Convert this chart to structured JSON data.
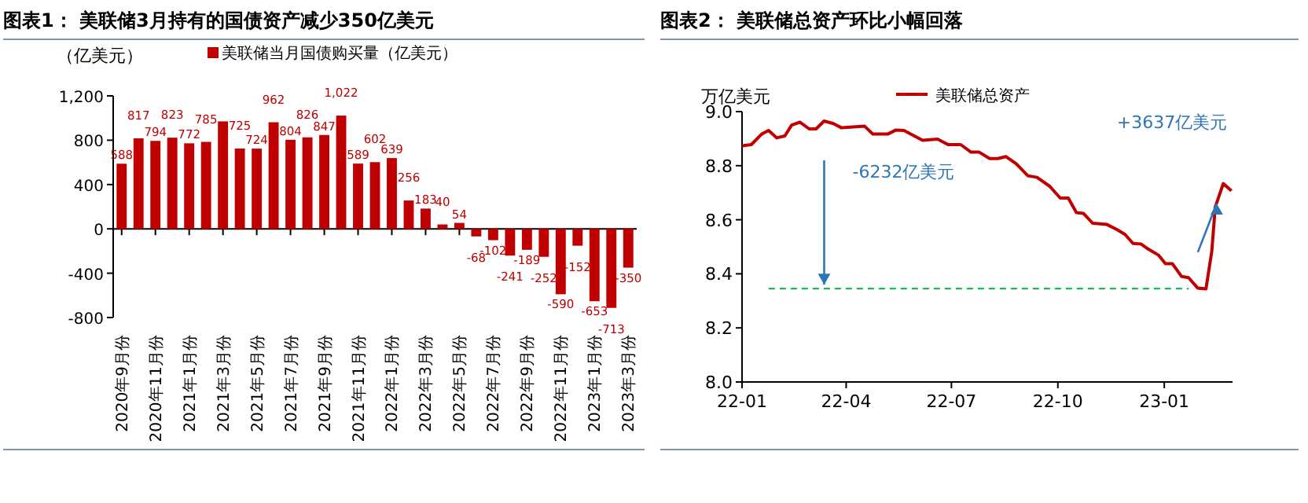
{
  "chart_data": [
    {
      "type": "bar",
      "title": "图表1：  美联储3月持有的国债资产减少350亿美元",
      "ylabel": "（亿美元）",
      "categories": [
        "2020年9月份",
        null,
        "2020年11月份",
        null,
        "2021年1月份",
        null,
        "2021年3月份",
        null,
        "2021年5月份",
        null,
        "2021年7月份",
        null,
        "2021年9月份",
        null,
        "2021年11月份",
        null,
        "2022年1月份",
        null,
        "2022年3月份",
        null,
        "2022年5月份",
        null,
        "2022年7月份",
        null,
        "2022年9月份",
        null,
        "2022年11月份",
        null,
        "2023年1月份",
        null,
        "2023年3月份"
      ],
      "series": [
        {
          "name": "美联储当月国债购买量（亿美元）",
          "color": "#c00000",
          "values": [
            588,
            817,
            794,
            823,
            772,
            785,
            970,
            725,
            724,
            962,
            804,
            826,
            847,
            1022,
            589,
            602,
            639,
            256,
            183,
            40,
            54,
            -68,
            -102,
            -241,
            -189,
            -252,
            -590,
            -152,
            -653,
            -713,
            -350
          ],
          "value_labels": [
            "588",
            "817",
            "794",
            "823",
            "772",
            "785",
            null,
            "725",
            "724",
            "962",
            "804",
            "826",
            "847",
            "1,022",
            "589",
            "602",
            "639",
            "256",
            "183",
            "40",
            "54",
            "-68",
            "-102",
            "-241",
            "-189",
            "-252",
            "-590",
            "-152",
            "-653",
            "-713",
            "-350"
          ]
        }
      ],
      "ylim": [
        -800,
        1200
      ],
      "yticks": [
        -800,
        -400,
        0,
        400,
        800,
        {
          "value": 1200,
          "label": "1,200"
        }
      ],
      "legend": "top"
    },
    {
      "type": "line",
      "title": "图表2：  美联储总资产环比小幅回落",
      "ylabel": "万亿美元",
      "x": [
        "2022-01-01",
        "2022-01-09",
        "2022-01-18",
        "2022-01-24",
        "2022-01-31",
        "2022-02-07",
        "2022-02-13",
        "2022-02-20",
        "2022-02-28",
        "2022-03-06",
        "2022-03-13",
        "2022-03-21",
        "2022-03-28",
        "2022-04-17",
        "2022-04-24",
        "2022-05-07",
        "2022-05-14",
        "2022-05-21",
        "2022-06-06",
        "2022-06-19",
        "2022-06-28",
        "2022-07-09",
        "2022-07-18",
        "2022-07-25",
        "2022-08-03",
        "2022-08-10",
        "2022-08-17",
        "2022-08-26",
        "2022-09-05",
        "2022-09-13",
        "2022-09-24",
        "2022-10-03",
        "2022-10-10",
        "2022-10-17",
        "2022-10-23",
        "2022-10-31",
        "2022-11-12",
        "2022-11-21",
        "2022-11-28",
        "2022-12-05",
        "2022-12-12",
        "2022-12-18",
        "2022-12-27",
        "2023-01-02",
        "2023-01-08",
        "2023-01-16",
        "2023-01-22",
        "2023-01-30",
        "2023-02-06",
        "2023-02-11",
        "2023-02-14",
        "2023-02-21",
        "2023-02-28"
      ],
      "series": [
        {
          "name": "美联储总资产",
          "color": "#c00000",
          "values": [
            8.873,
            8.878,
            8.917,
            8.93,
            8.903,
            8.91,
            8.95,
            8.961,
            8.936,
            8.936,
            8.965,
            8.956,
            8.94,
            8.946,
            8.917,
            8.917,
            8.932,
            8.93,
            8.894,
            8.898,
            8.878,
            8.878,
            8.85,
            8.85,
            8.826,
            8.826,
            8.834,
            8.807,
            8.763,
            8.757,
            8.724,
            8.68,
            8.68,
            8.627,
            8.624,
            8.587,
            8.583,
            8.564,
            8.546,
            8.512,
            8.51,
            8.492,
            8.469,
            8.438,
            8.438,
            8.39,
            8.386,
            8.347,
            8.344,
            8.483,
            8.647,
            8.734,
            8.707
          ]
        }
      ],
      "xlim": [
        "2022-01-01",
        "2023-03-01"
      ],
      "xticks": [
        {
          "value": "2022-01-01",
          "label": "22-01"
        },
        {
          "value": "2022-04-01",
          "label": "22-04"
        },
        {
          "value": "2022-07-01",
          "label": "22-07"
        },
        {
          "value": "2022-10-01",
          "label": "22-10"
        },
        {
          "value": "2023-01-01",
          "label": "23-01"
        }
      ],
      "ylim": [
        8.0,
        9.0
      ],
      "yticks": [
        {
          "value": 8,
          "label": "8.0"
        },
        8.2,
        8.4,
        8.6,
        8.8,
        {
          "value": 9,
          "label": "9.0"
        }
      ],
      "ref_lines": [
        {
          "axis": "y",
          "value": 8.345,
          "color": "#00b050",
          "line_style": "dashed"
        }
      ],
      "annotations": [
        "-6232亿美元",
        "+3637亿美元"
      ],
      "legend": "top"
    }
  ]
}
